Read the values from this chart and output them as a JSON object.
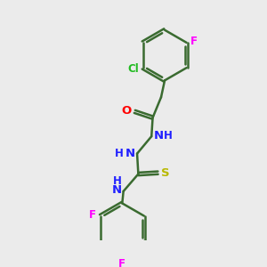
{
  "background_color": "#ebebeb",
  "bond_color": "#3a6b30",
  "bond_width": 1.8,
  "atom_colors": {
    "N": "#2020ff",
    "O": "#ff0000",
    "S": "#b8b800",
    "F": "#ff00ff",
    "Cl": "#22bb22"
  },
  "figsize": [
    3.0,
    3.0
  ],
  "dpi": 100,
  "xlim": [
    0,
    10
  ],
  "ylim": [
    0,
    10
  ]
}
